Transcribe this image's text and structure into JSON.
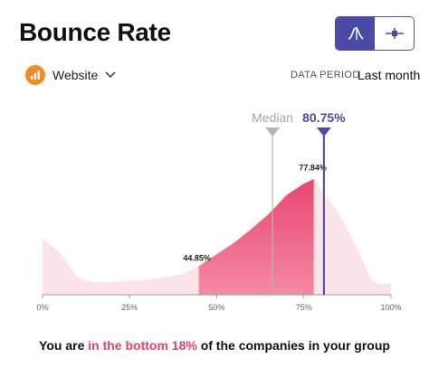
{
  "header": {
    "title": "Bounce Rate"
  },
  "view_toggle": {
    "active": "distribution",
    "options": [
      "distribution-icon",
      "range-icon"
    ]
  },
  "source": {
    "label": "Website",
    "icon": "bar-chart-icon"
  },
  "data_period": {
    "label": "DATA PERIOD",
    "value": "Last month"
  },
  "colors": {
    "accent": "#4b4aa6",
    "highlight": "#e0426b",
    "curve_light": "#fbe3e8",
    "curve_dark": "#e8466f",
    "median": "#b5b5b5"
  },
  "chart_data": {
    "type": "area",
    "xlim": [
      0,
      100
    ],
    "x_ticks": [
      "0%",
      "25%",
      "50%",
      "75%",
      "100%"
    ],
    "x": [
      0,
      5,
      10,
      15,
      20,
      25,
      30,
      35,
      40,
      45,
      50,
      55,
      60,
      65,
      70,
      75,
      78,
      80,
      85,
      90,
      95,
      100
    ],
    "y": [
      0.48,
      0.36,
      0.16,
      0.11,
      0.11,
      0.12,
      0.13,
      0.15,
      0.18,
      0.25,
      0.35,
      0.45,
      0.57,
      0.7,
      0.86,
      0.96,
      1.0,
      0.9,
      0.7,
      0.42,
      0.12,
      0.1
    ],
    "percentile_band": {
      "from": 44.85,
      "to": 77.84
    },
    "band_labels": {
      "from": "44.85%",
      "to": "77.84%"
    },
    "median": {
      "label": "Median",
      "x": 66
    },
    "company_value": {
      "label": "80.75%",
      "x": 80.75
    }
  },
  "summary": {
    "prefix": "You are ",
    "highlight": "in the bottom 18%",
    "suffix": " of the companies in your group"
  }
}
